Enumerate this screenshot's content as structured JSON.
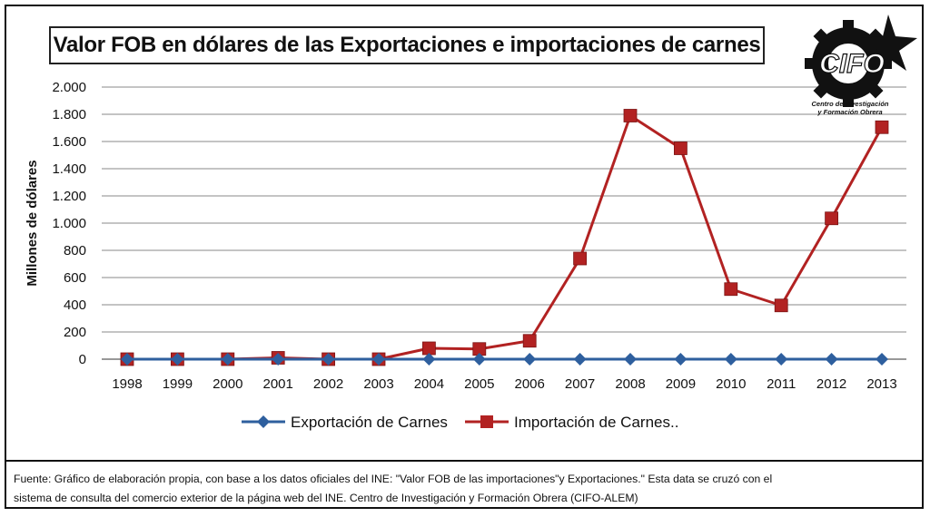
{
  "chart_data": {
    "type": "line",
    "title": "Valor FOB en dólares de las Exportaciones e importaciones de carnes",
    "xlabel": "",
    "ylabel": "Millones de dólares",
    "categories": [
      "1998",
      "1999",
      "2000",
      "2001",
      "2002",
      "2003",
      "2004",
      "2005",
      "2006",
      "2007",
      "2008",
      "2009",
      "2010",
      "2011",
      "2012",
      "2013"
    ],
    "ylim": [
      0,
      2000
    ],
    "yticks": [
      0,
      200,
      400,
      600,
      800,
      1000,
      1200,
      1400,
      1600,
      1800,
      2000
    ],
    "ytick_labels": [
      "0",
      "200",
      "400",
      "600",
      "800",
      "1.000",
      "1.200",
      "1.400",
      "1.600",
      "1.800",
      "2.000"
    ],
    "grid": true,
    "legend_position": "bottom",
    "series": [
      {
        "name": "Exportación de Carnes",
        "color": "#2e5f9e",
        "marker": "diamond",
        "values": [
          0,
          0,
          0,
          0,
          0,
          0,
          0,
          0,
          0,
          0,
          0,
          0,
          0,
          0,
          0,
          0
        ]
      },
      {
        "name": "Importación de Carnes..",
        "color": "#b22222",
        "marker": "square",
        "values": [
          0,
          0,
          0,
          10,
          0,
          0,
          80,
          75,
          135,
          740,
          1790,
          1550,
          515,
          395,
          1035,
          1705
        ]
      }
    ]
  },
  "logo": {
    "text": "CIFO",
    "caption_line1": "Centro de Investigación",
    "caption_line2": "y Formación Obrera"
  },
  "footer": {
    "line1": "Fuente: Gráfico de elaboración propia, con base a los datos oficiales del  INE: \"Valor FOB de las importaciones\"y Exportaciones.\"  Esta data se cruzó con el",
    "line2": "sistema de consulta del comercio exterior de la página web del INE.  Centro de Investigación y Formación Obrera (CIFO-ALEM)"
  }
}
